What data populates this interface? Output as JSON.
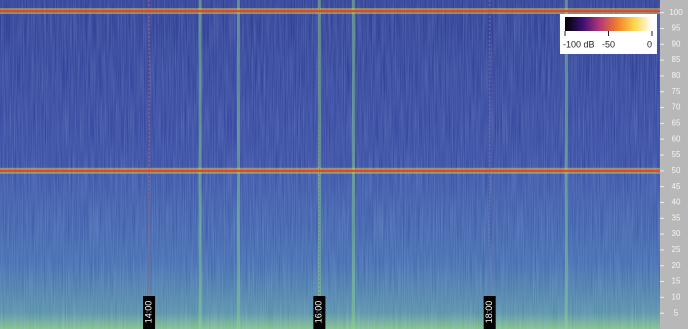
{
  "chart_data": {
    "type": "spectrogram",
    "xlim": [
      12.25,
      20
    ],
    "xticks": [
      {
        "value": 14,
        "label": "14:00"
      },
      {
        "value": 16,
        "label": "16:00"
      },
      {
        "value": 18,
        "label": "18:00"
      }
    ],
    "ylim": [
      0,
      104
    ],
    "yticks": [
      5,
      10,
      15,
      20,
      25,
      30,
      35,
      40,
      45,
      50,
      55,
      60,
      65,
      70,
      75,
      80,
      85,
      90,
      95,
      100
    ],
    "clim": [
      -100,
      0
    ],
    "cticks": [
      {
        "value": -100,
        "label": "-100 dB"
      },
      -50,
      0
    ],
    "colormap": [
      "#000000",
      "#3b0f70",
      "#b5367a",
      "#f07f2b",
      "#fcd74c",
      "#ffffff"
    ],
    "lines": {
      "color": "#e8402a",
      "values": [
        50,
        100.5
      ]
    },
    "events": {
      "color": "#8fdc86",
      "x": [
        14.6,
        15.05,
        16.0,
        16.4,
        18.9
      ]
    }
  }
}
